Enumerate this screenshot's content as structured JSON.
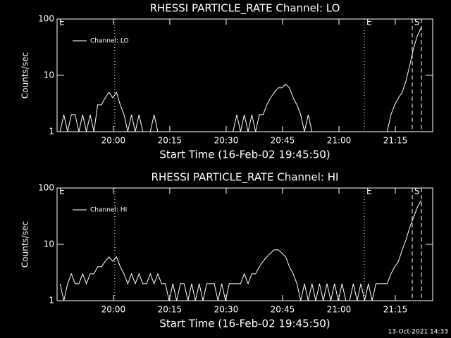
{
  "chart_data": [
    {
      "type": "line",
      "title": "RHESSI PARTICLE_RATE Channel: LO",
      "xlabel": "Start Time (16-Feb-02 19:45:50)",
      "ylabel": "Counts/sec",
      "ylog": true,
      "ylim": [
        1,
        100
      ],
      "yticks": [
        1,
        10,
        100
      ],
      "xlim": [
        -0.8,
        99.1
      ],
      "xticks": [
        {
          "value": 14.17,
          "label": "20:00"
        },
        {
          "value": 29.17,
          "label": "20:15"
        },
        {
          "value": 44.17,
          "label": "20:30"
        },
        {
          "value": 59.17,
          "label": "20:45"
        },
        {
          "value": 74.17,
          "label": "21:00"
        },
        {
          "value": 89.17,
          "label": "21:15"
        }
      ],
      "legend": "upper left",
      "series": [
        {
          "name": "Channel: LO",
          "color": "#ffffff",
          "x": [
            0,
            1,
            2,
            3,
            4,
            5,
            6,
            7,
            8,
            9,
            10,
            11,
            12,
            13,
            14,
            15,
            16,
            17,
            18,
            19,
            20,
            21,
            22,
            23,
            24,
            25,
            26,
            27,
            28,
            29,
            30,
            31,
            32,
            33,
            34,
            35,
            36,
            37,
            38,
            39,
            40,
            41,
            42,
            43,
            44,
            45,
            46,
            47,
            48,
            49,
            50,
            51,
            52,
            53,
            54,
            55,
            56,
            57,
            58,
            59,
            60,
            61,
            62,
            63,
            64,
            65,
            66,
            67,
            68,
            69,
            70,
            71,
            72,
            73,
            74,
            75,
            76,
            77,
            78,
            79,
            80,
            81,
            82,
            83,
            84,
            85,
            86,
            87,
            88,
            89,
            90,
            91,
            92,
            93,
            94,
            95,
            96
          ],
          "values": [
            1,
            2,
            1,
            2,
            2,
            1,
            2,
            1,
            2,
            1,
            3,
            3,
            4,
            5,
            4,
            5,
            3,
            2,
            1,
            2,
            1,
            2,
            1,
            1,
            1,
            2,
            1,
            1,
            1,
            1,
            1,
            1,
            1,
            1,
            1,
            1,
            1,
            1,
            1,
            1,
            1,
            1,
            1,
            1,
            1,
            1,
            1,
            2,
            1,
            2,
            1,
            2,
            1,
            2,
            2,
            3,
            4,
            5,
            6,
            6,
            7,
            6,
            4,
            3,
            2,
            1,
            2,
            1,
            1,
            1,
            1,
            1,
            1,
            1,
            1,
            1,
            1,
            1,
            1,
            1,
            1,
            1,
            1,
            1,
            1,
            1,
            1,
            1,
            2,
            3,
            4,
            5,
            8,
            15,
            30,
            50,
            70
          ]
        }
      ],
      "vlines": [
        {
          "x": -0.8,
          "style": "dotted",
          "label": "E"
        },
        {
          "x": 14.54,
          "style": "dotted"
        },
        {
          "x": 80.92,
          "style": "dotted",
          "label": "E"
        },
        {
          "x": 93.67,
          "style": "dashed",
          "label": "S"
        },
        {
          "x": 96.11,
          "style": "dashed"
        }
      ]
    },
    {
      "type": "line",
      "title": "RHESSI PARTICLE_RATE Channel: HI",
      "xlabel": "Start Time (16-Feb-02 19:45:50)",
      "ylabel": "Counts/sec",
      "ylog": true,
      "ylim": [
        1,
        100
      ],
      "yticks": [
        1,
        10,
        100
      ],
      "xlim": [
        -0.8,
        99.1
      ],
      "xticks": [
        {
          "value": 14.17,
          "label": "20:00"
        },
        {
          "value": 29.17,
          "label": "20:15"
        },
        {
          "value": 44.17,
          "label": "20:30"
        },
        {
          "value": 59.17,
          "label": "20:45"
        },
        {
          "value": 74.17,
          "label": "21:00"
        },
        {
          "value": 89.17,
          "label": "21:15"
        }
      ],
      "legend": "upper left",
      "series": [
        {
          "name": "Channel: HI",
          "color": "#ffffff",
          "x": [
            0,
            1,
            2,
            3,
            4,
            5,
            6,
            7,
            8,
            9,
            10,
            11,
            12,
            13,
            14,
            15,
            16,
            17,
            18,
            19,
            20,
            21,
            22,
            23,
            24,
            25,
            26,
            27,
            28,
            29,
            30,
            31,
            32,
            33,
            34,
            35,
            36,
            37,
            38,
            39,
            40,
            41,
            42,
            43,
            44,
            45,
            46,
            47,
            48,
            49,
            50,
            51,
            52,
            53,
            54,
            55,
            56,
            57,
            58,
            59,
            60,
            61,
            62,
            63,
            64,
            65,
            66,
            67,
            68,
            69,
            70,
            71,
            72,
            73,
            74,
            75,
            76,
            77,
            78,
            79,
            80,
            81,
            82,
            83,
            84,
            85,
            86,
            87,
            88,
            89,
            90,
            91,
            92,
            93,
            94,
            95,
            96
          ],
          "values": [
            2,
            1,
            2,
            3,
            2,
            2,
            3,
            2,
            3,
            3,
            4,
            4,
            5,
            6,
            5,
            6,
            4,
            3,
            2,
            3,
            2,
            3,
            2,
            2,
            3,
            2,
            3,
            2,
            2,
            1,
            2,
            1,
            2,
            2,
            1,
            2,
            1,
            2,
            1,
            2,
            2,
            2,
            1,
            2,
            1,
            2,
            2,
            2,
            2,
            3,
            2,
            3,
            3,
            4,
            5,
            6,
            7,
            8,
            8,
            7,
            6,
            4,
            3,
            2,
            1,
            2,
            1,
            2,
            1,
            2,
            1,
            2,
            1,
            2,
            1,
            2,
            1,
            1,
            2,
            1,
            2,
            1,
            2,
            1,
            2,
            2,
            2,
            2,
            3,
            4,
            5,
            8,
            12,
            20,
            30,
            45,
            60
          ]
        }
      ],
      "vlines": [
        {
          "x": -0.8,
          "style": "dotted",
          "label": "E"
        },
        {
          "x": 14.54,
          "style": "dotted"
        },
        {
          "x": 80.92,
          "style": "dotted",
          "label": "E"
        },
        {
          "x": 93.67,
          "style": "dashed",
          "label": "S"
        },
        {
          "x": 96.11,
          "style": "dashed"
        }
      ]
    }
  ],
  "footer": "13-Oct-2021 14:33"
}
